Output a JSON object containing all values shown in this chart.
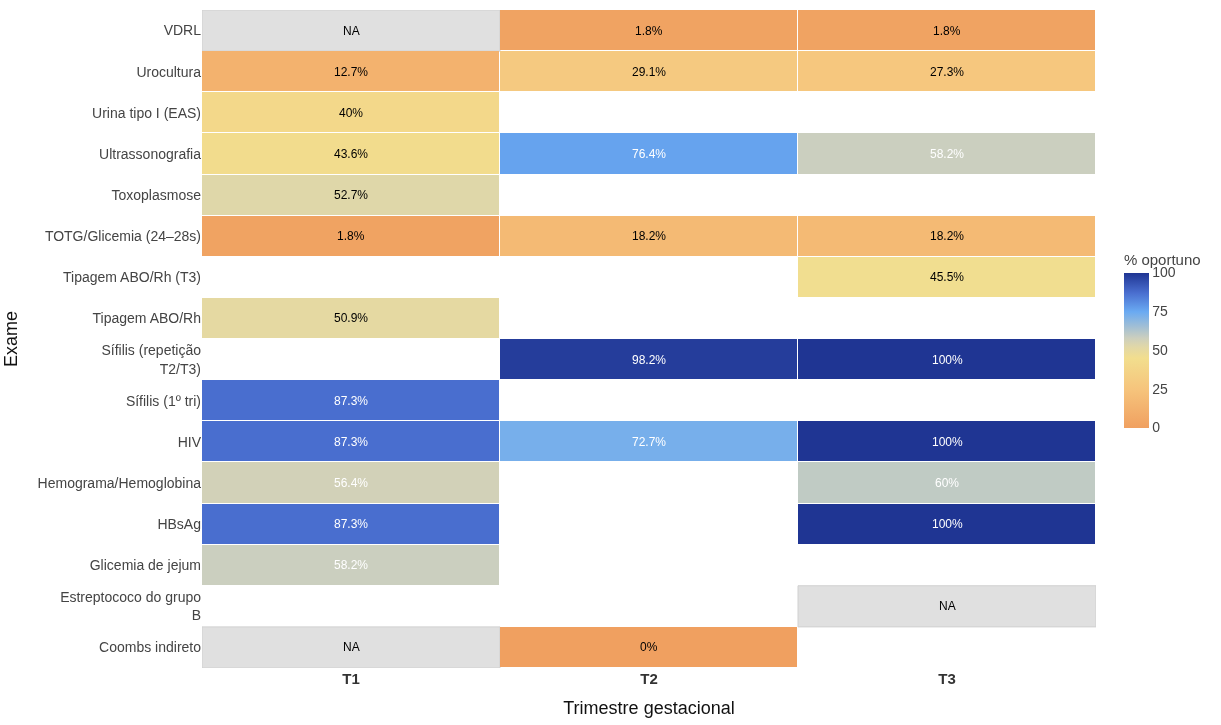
{
  "chart_data": {
    "type": "heatmap",
    "xlabel": "Trimestre gestacional",
    "ylabel": "Exame",
    "clabel": "% oportuno",
    "categories": [
      "T1",
      "T2",
      "T3"
    ],
    "y_categories": [
      "VDRL",
      "Urocultura",
      "Urina tipo I (EAS)",
      "Ultrassonografia",
      "Toxoplasmose",
      "TOTG/Glicemia (24–28s)",
      "Tipagem ABO/Rh (T3)",
      "Tipagem ABO/Rh",
      "Sífilis (repetição T2/T3)",
      "Sífilis (1º tri)",
      "HIV",
      "Hemograma/Hemoglobina",
      "HBsAg",
      "Glicemia de jejum",
      "Estreptococo do grupo B",
      "Coombs indireto"
    ],
    "cells": [
      [
        null,
        1.8,
        1.8
      ],
      [
        12.7,
        29.1,
        27.3
      ],
      [
        40,
        null,
        null
      ],
      [
        43.6,
        76.4,
        58.2
      ],
      [
        52.7,
        null,
        null
      ],
      [
        1.8,
        18.2,
        18.2
      ],
      [
        null,
        null,
        45.5
      ],
      [
        50.9,
        null,
        null
      ],
      [
        null,
        98.2,
        100
      ],
      [
        87.3,
        null,
        null
      ],
      [
        87.3,
        72.7,
        100
      ],
      [
        56.4,
        null,
        60
      ],
      [
        87.3,
        null,
        100
      ],
      [
        58.2,
        null,
        null
      ],
      [
        null,
        null,
        null
      ],
      [
        null,
        0,
        null
      ]
    ],
    "cell_labels": [
      [
        "NA",
        "1.8%",
        "1.8%"
      ],
      [
        "12.7%",
        "29.1%",
        "27.3%"
      ],
      [
        "40%",
        null,
        null
      ],
      [
        "43.6%",
        "76.4%",
        "58.2%"
      ],
      [
        "52.7%",
        null,
        null
      ],
      [
        "1.8%",
        "18.2%",
        "18.2%"
      ],
      [
        null,
        null,
        "45.5%"
      ],
      [
        "50.9%",
        null,
        null
      ],
      [
        null,
        "98.2%",
        "100%"
      ],
      [
        "87.3%",
        null,
        null
      ],
      [
        "87.3%",
        "72.7%",
        "100%"
      ],
      [
        "56.4%",
        null,
        "60%"
      ],
      [
        "87.3%",
        null,
        "100%"
      ],
      [
        "58.2%",
        null,
        null
      ],
      [
        null,
        null,
        "NA"
      ],
      [
        "NA",
        "0%",
        null
      ]
    ],
    "clim": [
      0,
      100
    ],
    "cticks": [
      0,
      25,
      50,
      75,
      100
    ]
  }
}
